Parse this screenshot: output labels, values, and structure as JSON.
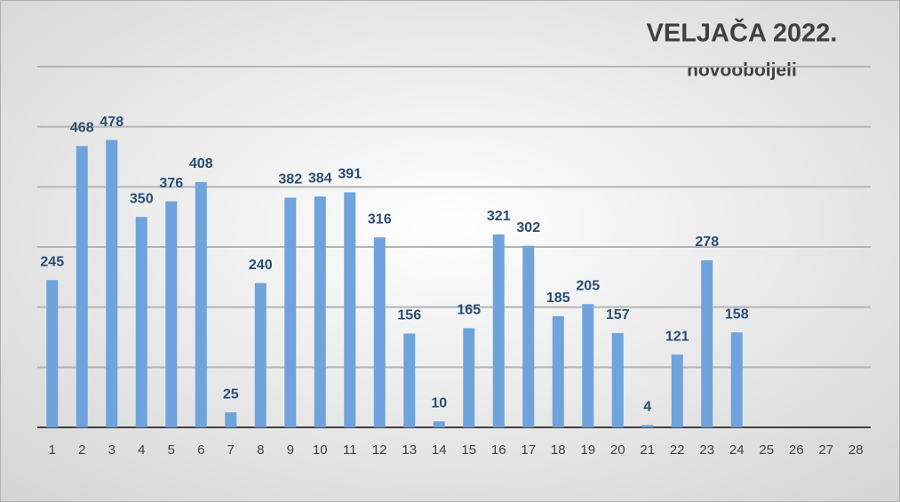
{
  "chart_data": {
    "type": "bar",
    "title": "VELJAČA 2022.",
    "subtitle": "novooboljeli",
    "categories": [
      "1",
      "2",
      "3",
      "4",
      "5",
      "6",
      "7",
      "8",
      "9",
      "10",
      "11",
      "12",
      "13",
      "14",
      "15",
      "16",
      "17",
      "18",
      "19",
      "20",
      "21",
      "22",
      "23",
      "24",
      "25",
      "26",
      "27",
      "28"
    ],
    "values": [
      245,
      468,
      478,
      350,
      376,
      408,
      25,
      240,
      382,
      384,
      391,
      316,
      156,
      10,
      165,
      321,
      302,
      185,
      205,
      157,
      4,
      121,
      278,
      158,
      null,
      null,
      null,
      null
    ],
    "color": "#6fa3dc",
    "label_color": "#2a4d73",
    "ylim": [
      0,
      600
    ],
    "yticks": [
      0,
      100,
      200,
      300,
      400,
      500,
      600
    ],
    "grid": true,
    "ytick_labels": false,
    "data_labels": true
  }
}
